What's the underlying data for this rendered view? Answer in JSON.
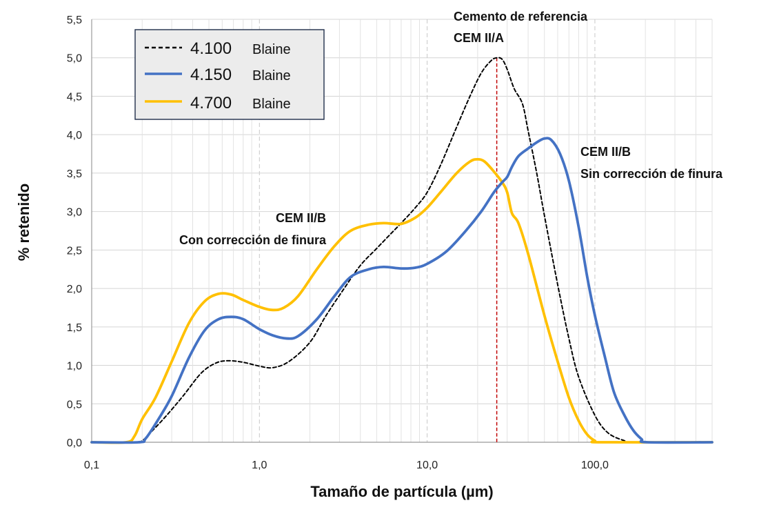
{
  "chart_data": {
    "type": "line",
    "xscale": "log",
    "xlim": [
      0.1,
      500
    ],
    "ylim": [
      0,
      5.5
    ],
    "xticks": [
      0.1,
      1,
      10,
      100
    ],
    "xtick_labels": [
      "0,1",
      "1,0",
      "10,0",
      "100,0"
    ],
    "yticks": [
      0,
      0.5,
      1,
      1.5,
      2,
      2.5,
      3,
      3.5,
      4,
      4.5,
      5,
      5.5
    ],
    "ytick_labels": [
      "0,0",
      "0,5",
      "1,0",
      "1,5",
      "2,0",
      "2,5",
      "3,0",
      "3,5",
      "4,0",
      "4,5",
      "5,0",
      "5,5"
    ],
    "xlabel": "Tamaño de partícula (µm)",
    "ylabel": "% retenido",
    "grid": true,
    "legend_position": "top-left",
    "series": [
      {
        "name": "4.100 Blaine",
        "legend_value": "4.100",
        "legend_unit": "Blaine",
        "color": "#000000",
        "dash": "dashed",
        "points": [
          [
            0.1,
            0
          ],
          [
            0.18,
            0
          ],
          [
            0.2,
            0.02
          ],
          [
            0.23,
            0.15
          ],
          [
            0.28,
            0.35
          ],
          [
            0.35,
            0.6
          ],
          [
            0.45,
            0.9
          ],
          [
            0.55,
            1.03
          ],
          [
            0.65,
            1.06
          ],
          [
            0.8,
            1.04
          ],
          [
            1.0,
            0.99
          ],
          [
            1.2,
            0.97
          ],
          [
            1.5,
            1.05
          ],
          [
            2.0,
            1.3
          ],
          [
            2.5,
            1.65
          ],
          [
            3.2,
            2.0
          ],
          [
            4.0,
            2.3
          ],
          [
            5.0,
            2.52
          ],
          [
            6.0,
            2.7
          ],
          [
            7.0,
            2.85
          ],
          [
            8.5,
            3.05
          ],
          [
            10.0,
            3.25
          ],
          [
            12.0,
            3.6
          ],
          [
            15.0,
            4.1
          ],
          [
            18.0,
            4.5
          ],
          [
            21.0,
            4.8
          ],
          [
            24.0,
            4.96
          ],
          [
            26.0,
            5.0
          ],
          [
            28.0,
            4.98
          ],
          [
            30.0,
            4.85
          ],
          [
            33.0,
            4.6
          ],
          [
            37.0,
            4.4
          ],
          [
            40.0,
            4.05
          ],
          [
            45.0,
            3.5
          ],
          [
            50.0,
            2.95
          ],
          [
            60.0,
            2.05
          ],
          [
            70.0,
            1.35
          ],
          [
            80.0,
            0.85
          ],
          [
            100.0,
            0.35
          ],
          [
            120.0,
            0.12
          ],
          [
            150.0,
            0.02
          ],
          [
            170.0,
            0
          ],
          [
            500,
            0
          ]
        ]
      },
      {
        "name": "4.150 Blaine",
        "legend_value": "4.150",
        "legend_unit": "Blaine",
        "color": "#4472c4",
        "dash": "solid",
        "points": [
          [
            0.1,
            0
          ],
          [
            0.19,
            0
          ],
          [
            0.21,
            0.05
          ],
          [
            0.25,
            0.3
          ],
          [
            0.3,
            0.6
          ],
          [
            0.38,
            1.1
          ],
          [
            0.47,
            1.45
          ],
          [
            0.57,
            1.6
          ],
          [
            0.68,
            1.63
          ],
          [
            0.8,
            1.6
          ],
          [
            1.0,
            1.47
          ],
          [
            1.2,
            1.39
          ],
          [
            1.45,
            1.35
          ],
          [
            1.7,
            1.38
          ],
          [
            2.2,
            1.6
          ],
          [
            2.8,
            1.9
          ],
          [
            3.5,
            2.15
          ],
          [
            4.5,
            2.25
          ],
          [
            5.5,
            2.28
          ],
          [
            7.0,
            2.26
          ],
          [
            8.5,
            2.27
          ],
          [
            10.0,
            2.32
          ],
          [
            13.0,
            2.48
          ],
          [
            17.0,
            2.75
          ],
          [
            21.0,
            3.0
          ],
          [
            25.0,
            3.25
          ],
          [
            28.0,
            3.38
          ],
          [
            30.0,
            3.45
          ],
          [
            32.0,
            3.58
          ],
          [
            35.0,
            3.72
          ],
          [
            40.0,
            3.82
          ],
          [
            45.0,
            3.9
          ],
          [
            50.0,
            3.95
          ],
          [
            55.0,
            3.93
          ],
          [
            62.0,
            3.75
          ],
          [
            70.0,
            3.4
          ],
          [
            80.0,
            2.8
          ],
          [
            90.0,
            2.15
          ],
          [
            100.0,
            1.65
          ],
          [
            115.0,
            1.1
          ],
          [
            130.0,
            0.65
          ],
          [
            150.0,
            0.35
          ],
          [
            170.0,
            0.15
          ],
          [
            190.0,
            0.04
          ],
          [
            205.0,
            0
          ],
          [
            500,
            0
          ]
        ]
      },
      {
        "name": "4.700 Blaine",
        "legend_value": "4.700",
        "legend_unit": "Blaine",
        "color": "#ffc000",
        "dash": "solid",
        "points": [
          [
            0.1,
            0
          ],
          [
            0.16,
            0
          ],
          [
            0.18,
            0.08
          ],
          [
            0.2,
            0.3
          ],
          [
            0.24,
            0.58
          ],
          [
            0.3,
            1.05
          ],
          [
            0.38,
            1.55
          ],
          [
            0.47,
            1.83
          ],
          [
            0.57,
            1.93
          ],
          [
            0.68,
            1.92
          ],
          [
            0.8,
            1.85
          ],
          [
            1.0,
            1.76
          ],
          [
            1.2,
            1.72
          ],
          [
            1.4,
            1.75
          ],
          [
            1.7,
            1.9
          ],
          [
            2.2,
            2.25
          ],
          [
            2.8,
            2.55
          ],
          [
            3.5,
            2.75
          ],
          [
            4.5,
            2.83
          ],
          [
            5.5,
            2.85
          ],
          [
            7.0,
            2.84
          ],
          [
            8.5,
            2.92
          ],
          [
            10.0,
            3.05
          ],
          [
            12.0,
            3.25
          ],
          [
            15.0,
            3.5
          ],
          [
            18.0,
            3.65
          ],
          [
            20.0,
            3.68
          ],
          [
            22.0,
            3.65
          ],
          [
            25.0,
            3.52
          ],
          [
            28.0,
            3.38
          ],
          [
            30.0,
            3.25
          ],
          [
            32.0,
            2.98
          ],
          [
            35.0,
            2.85
          ],
          [
            40.0,
            2.45
          ],
          [
            50.0,
            1.65
          ],
          [
            60.0,
            1.05
          ],
          [
            70.0,
            0.58
          ],
          [
            80.0,
            0.28
          ],
          [
            90.0,
            0.1
          ],
          [
            100.0,
            0.02
          ],
          [
            110.0,
            0
          ],
          [
            500,
            0
          ]
        ]
      }
    ],
    "reference_line": {
      "x": 26,
      "color": "#c00000"
    },
    "annotations": [
      {
        "id": "ref-cement",
        "lines": [
          "Cemento de referencia",
          "CEM II/A"
        ]
      },
      {
        "id": "cem-iib-no-correction",
        "lines": [
          "CEM II/B",
          "Sin corrección de finura"
        ]
      },
      {
        "id": "cem-iib-correction",
        "lines": [
          "CEM II/B",
          "Con corrección de finura"
        ]
      }
    ]
  }
}
